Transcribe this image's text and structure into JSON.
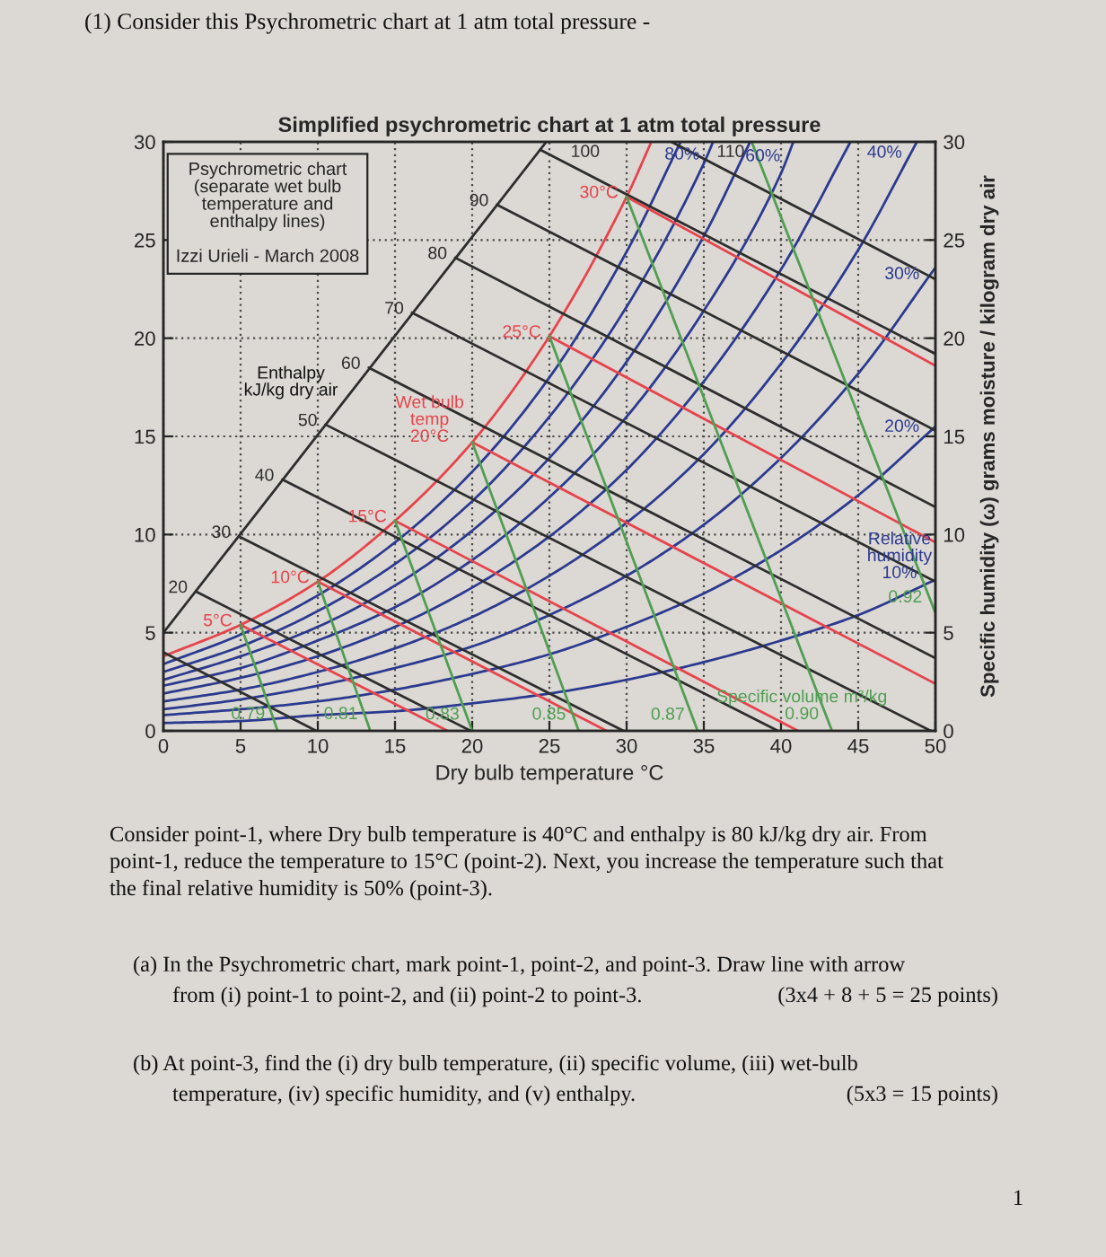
{
  "chart_data": {
    "type": "line",
    "title": "Simplified psychrometric chart at 1 atm total pressure",
    "xlabel": "Dry bulb temperature °C",
    "y2label": "Specific humidity (ω) grams moisture / kilogram dry air",
    "xlim": [
      0,
      50
    ],
    "xticks": [
      0,
      5,
      10,
      15,
      20,
      25,
      30,
      35,
      40,
      45,
      50
    ],
    "ylim": [
      0,
      30
    ],
    "yticks": [
      0,
      5,
      10,
      15,
      20,
      25,
      30
    ],
    "y2lim": [
      0,
      30
    ],
    "y2ticks": [
      0,
      5,
      10,
      15,
      20,
      25,
      30
    ],
    "grid": true,
    "series": [
      {
        "color": "#e5444c",
        "x": [
          0,
          5,
          10,
          15,
          20,
          25,
          30,
          31.6
        ],
        "values": [
          3.8,
          5.4,
          7.6,
          10.7,
          14.7,
          20.1,
          27.2,
          30
        ]
      },
      {
        "name": "Relative\nhumidity\n10%",
        "color": "#2b3a8f",
        "x": [
          50,
          45,
          40,
          35,
          30,
          25,
          20,
          15,
          10,
          5,
          0
        ],
        "values": [
          7.7,
          5.9,
          4.6,
          3.5,
          2.6,
          1.9,
          1.4,
          1.0,
          0.8,
          0.5,
          0.4
        ]
      },
      {
        "name": "20%",
        "color": "#2b3a8f",
        "x": [
          50,
          45,
          40,
          35,
          30,
          25,
          20,
          15,
          10,
          5,
          0
        ],
        "values": [
          15.5,
          12.0,
          9.2,
          7.0,
          5.3,
          3.9,
          2.9,
          2.1,
          1.5,
          1.1,
          0.8
        ]
      },
      {
        "name": "30%",
        "color": "#2b3a8f",
        "x": [
          50,
          45,
          40,
          35,
          30,
          25,
          20,
          15,
          10,
          5,
          0
        ],
        "values": [
          23.6,
          18.2,
          13.9,
          10.5,
          7.9,
          5.9,
          4.3,
          3.2,
          2.3,
          1.6,
          1.1
        ]
      },
      {
        "name": "40%",
        "color": "#2b3a8f",
        "x": [
          48.8,
          45,
          40,
          35,
          30,
          25,
          20,
          15,
          10,
          5,
          0
        ],
        "values": [
          30,
          24.5,
          18.7,
          14.1,
          10.6,
          7.9,
          5.8,
          4.2,
          3.0,
          2.1,
          1.5
        ]
      },
      {
        "color": "#2b3a8f",
        "x": [
          44.5,
          40,
          35,
          30,
          25,
          20,
          15,
          10,
          5,
          0
        ],
        "values": [
          30,
          23.5,
          17.8,
          13.3,
          9.9,
          7.3,
          5.3,
          3.8,
          2.7,
          1.9
        ]
      },
      {
        "name": "60%",
        "color": "#2b3a8f",
        "x": [
          40.8,
          40,
          35,
          30,
          25,
          20,
          15,
          10,
          5,
          0
        ],
        "values": [
          30,
          28.4,
          21.4,
          16.0,
          11.9,
          8.7,
          6.3,
          4.6,
          3.2,
          2.3
        ]
      },
      {
        "color": "#2b3a8f",
        "x": [
          38.0,
          35,
          30,
          25,
          20,
          15,
          10,
          5,
          0
        ],
        "values": [
          30,
          25.2,
          18.8,
          13.9,
          10.2,
          7.4,
          5.3,
          3.8,
          2.6
        ]
      },
      {
        "name": "80%",
        "color": "#2b3a8f",
        "x": [
          35.6,
          35,
          30,
          25,
          20,
          15,
          10,
          5,
          0
        ],
        "values": [
          30,
          28.9,
          21.6,
          16.0,
          11.7,
          8.5,
          6.1,
          4.3,
          3.0
        ]
      },
      {
        "color": "#2b3a8f",
        "x": [
          33.5,
          30,
          25,
          20,
          15,
          10,
          5,
          0
        ],
        "values": [
          30,
          24.4,
          18.0,
          13.2,
          9.6,
          6.9,
          4.9,
          3.4
        ]
      },
      {
        "color": "#2d2d2d",
        "x": [
          0,
          24.8
        ],
        "values": [
          5.0,
          30
        ]
      },
      {
        "color": "#2d2d2d",
        "x": [
          0,
          9.9
        ],
        "values": [
          4.0,
          0
        ]
      },
      {
        "name": "20",
        "color": "#2d2d2d",
        "x": [
          2.1,
          19.9
        ],
        "values": [
          7.1,
          0
        ]
      },
      {
        "name": "30",
        "color": "#2d2d2d",
        "x": [
          4.9,
          29.8
        ],
        "values": [
          9.9,
          0
        ]
      },
      {
        "name": "40",
        "color": "#2d2d2d",
        "x": [
          7.7,
          39.8
        ],
        "values": [
          12.8,
          0
        ]
      },
      {
        "name": "50",
        "color": "#2d2d2d",
        "x": [
          10.5,
          49.7
        ],
        "values": [
          15.6,
          0
        ]
      },
      {
        "name": "60",
        "color": "#2d2d2d",
        "x": [
          13.3,
          50
        ],
        "values": [
          18.5,
          3.7
        ]
      },
      {
        "name": "70",
        "color": "#2d2d2d",
        "x": [
          16.1,
          50
        ],
        "values": [
          21.3,
          7.6
        ]
      },
      {
        "name": "80",
        "color": "#2d2d2d",
        "x": [
          18.9,
          50
        ],
        "values": [
          24.1,
          11.4
        ]
      },
      {
        "name": "90",
        "color": "#2d2d2d",
        "x": [
          21.6,
          50
        ],
        "values": [
          26.8,
          15.3
        ]
      },
      {
        "name": "100",
        "color": "#2d2d2d",
        "x": [
          24.4,
          50
        ],
        "values": [
          29.6,
          19.2
        ]
      },
      {
        "name": "110",
        "color": "#2d2d2d",
        "x": [
          32.9,
          50
        ],
        "values": [
          30,
          23.0
        ]
      },
      {
        "name": "5°C",
        "color": "#e5444c",
        "x": [
          5,
          18.4
        ],
        "values": [
          5.4,
          0
        ]
      },
      {
        "name": "10°C",
        "color": "#e5444c",
        "x": [
          10,
          28.7
        ],
        "values": [
          7.6,
          0
        ]
      },
      {
        "name": "15°C",
        "color": "#e5444c",
        "x": [
          15,
          41.1
        ],
        "values": [
          10.7,
          0
        ]
      },
      {
        "name": "Wet bulb\ntemp\n20°C",
        "color": "#e5444c",
        "x": [
          20,
          50
        ],
        "values": [
          14.7,
          2.4
        ]
      },
      {
        "name": "25°C",
        "color": "#e5444c",
        "x": [
          25,
          50
        ],
        "values": [
          20.1,
          9.6
        ]
      },
      {
        "name": "30°C",
        "color": "#e5444c",
        "x": [
          30,
          50
        ],
        "values": [
          27.2,
          18.6
        ]
      },
      {
        "name": "0.79",
        "color": "#4f9e52",
        "x": [
          7.4,
          5
        ],
        "values": [
          0,
          5.4
        ]
      },
      {
        "name": "0.81",
        "color": "#4f9e52",
        "x": [
          13.4,
          10
        ],
        "values": [
          0,
          7.6
        ]
      },
      {
        "name": "0.83",
        "color": "#4f9e52",
        "x": [
          20.0,
          15
        ],
        "values": [
          0,
          10.7
        ]
      },
      {
        "name": "0.85",
        "color": "#4f9e52",
        "x": [
          26.9,
          20
        ],
        "values": [
          0,
          14.7
        ]
      },
      {
        "name": "0.87",
        "color": "#4f9e52",
        "x": [
          34.6,
          25
        ],
        "values": [
          0,
          20.1
        ]
      },
      {
        "name": "Specific volume m³/kg\n0.90",
        "color": "#4f9e52",
        "x": [
          43.3,
          30
        ],
        "values": [
          0,
          27.2
        ]
      },
      {
        "name": "0.92",
        "color": "#4f9e52",
        "x": [
          50,
          38.1
        ],
        "values": [
          6.0,
          30
        ]
      }
    ],
    "annotations": [
      "(1) Consider this Psychrometric chart at 1 atm total pressure -",
      "Psychrometric chart\n(separate wet bulb\ntemperature and\nenthalpy lines)\n\nIzzi Urieli - March 2008",
      "Consider point-1, where Dry bulb temperature is 40°C and enthalpy is 80 kJ/kg dry air. From\npoint-1, reduce the temperature to 15°C (point-2). Next, you increase the temperature such that\nthe final relative humidity is 50% (point-3).",
      "(a) In the Psychrometric chart, mark point-1, point-2, and point-3. Draw line with arrow",
      "from (i) point-1 to point-2, and (ii) point-2 to point-3.",
      "(3x4 + 8 + 5 = 25 points)",
      "(b) At point-3, find the (i) dry bulb temperature, (ii) specific volume, (iii) wet-bulb",
      "temperature, (iv) specific humidity, and (v) enthalpy.",
      "(5x3 = 15 points)",
      "1",
      "Enthalpy\nkJ/kg dry air"
    ]
  }
}
